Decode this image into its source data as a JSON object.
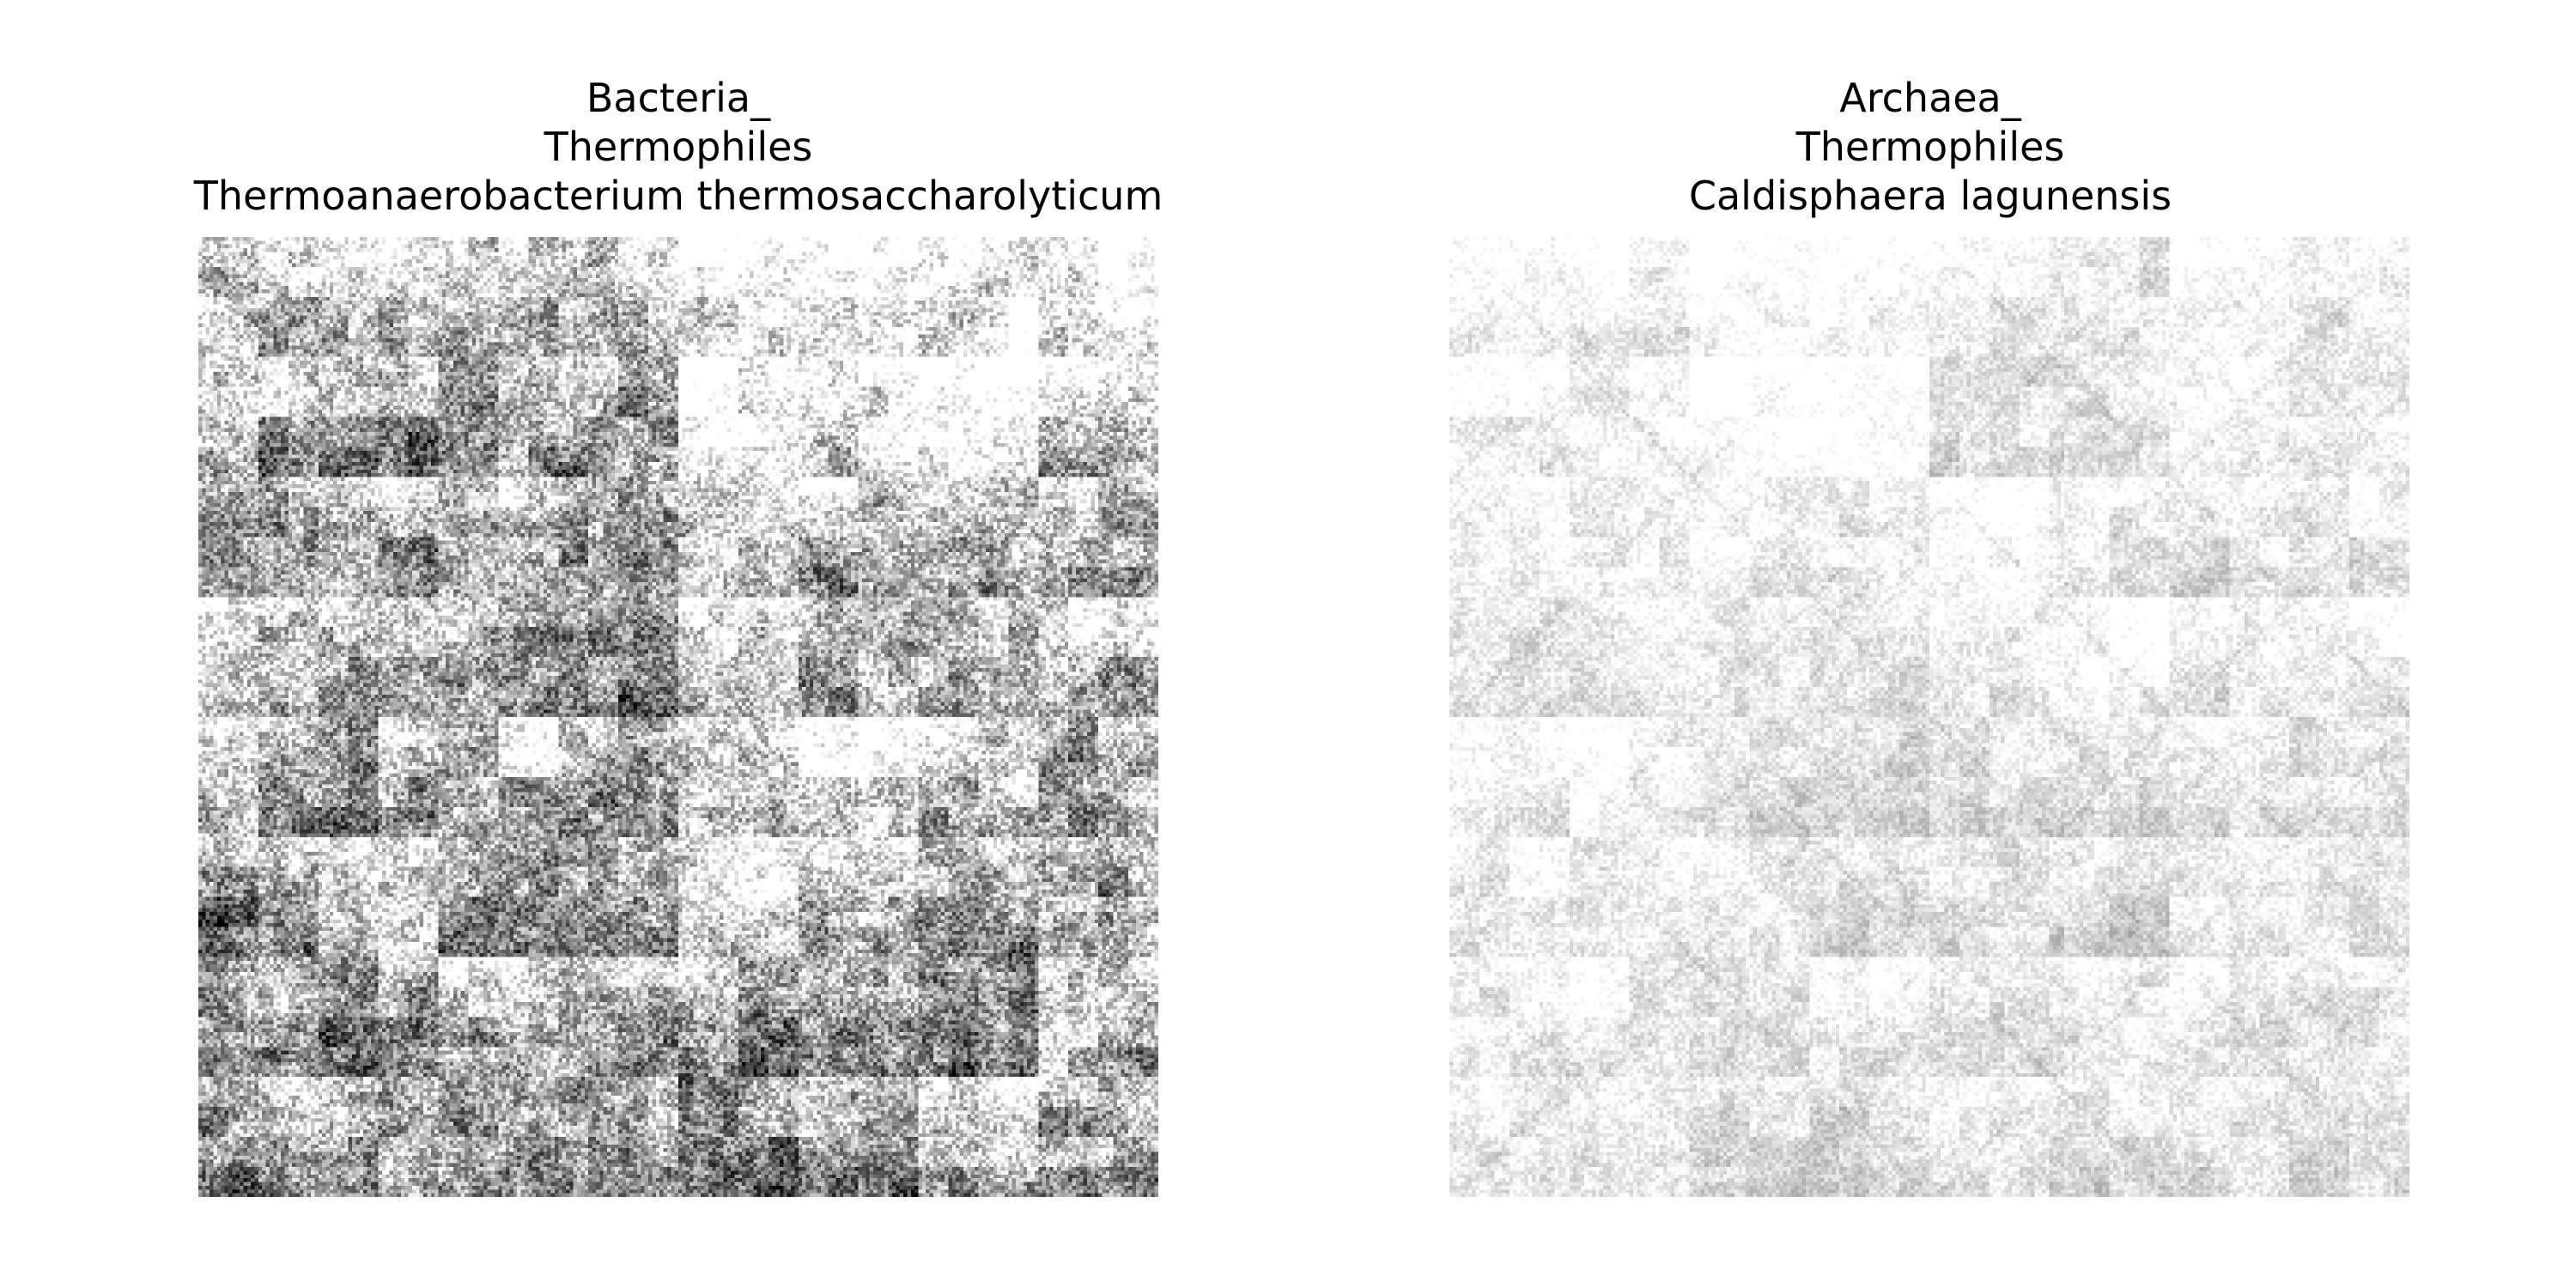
{
  "figure": {
    "panels": [
      {
        "id": "bacteria",
        "title_lines": [
          "Bacteria_",
          "Thermophiles",
          "Thermoanaerobacterium thermosaccharolyticum"
        ],
        "image_kind": "frequency chaos game representation",
        "resolution_cells": 256,
        "intensity": "high",
        "colormap": "white-to-black (greyscale)"
      },
      {
        "id": "archaea",
        "title_lines": [
          "Archaea_",
          "Thermophiles",
          "Caldisphaera lagunensis"
        ],
        "image_kind": "frequency chaos game representation",
        "resolution_cells": 256,
        "intensity": "low",
        "colormap": "white-to-black (greyscale)"
      }
    ]
  }
}
